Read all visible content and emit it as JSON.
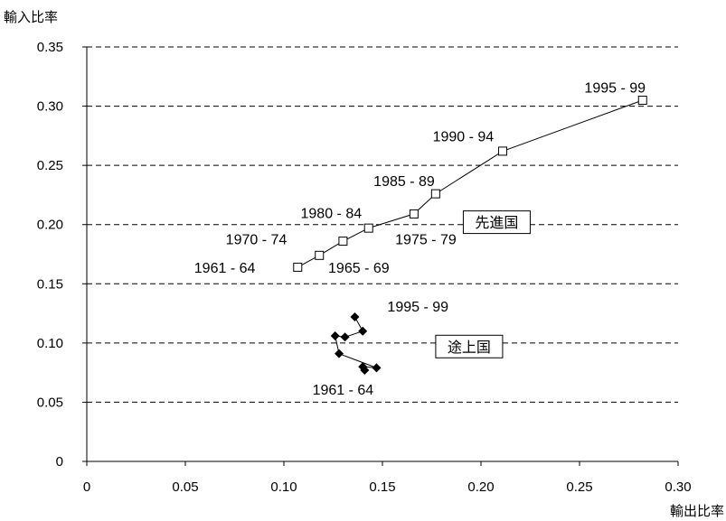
{
  "chart_data": {
    "type": "scatter",
    "title": "",
    "xlabel": "輸出比率",
    "ylabel": "輸入比率",
    "xlim": [
      0,
      0.3
    ],
    "ylim": [
      0,
      0.35
    ],
    "x_ticks": [
      "0",
      "0.05",
      "0.10",
      "0.15",
      "0.20",
      "0.25",
      "0.30"
    ],
    "y_ticks": [
      "0",
      "0.05",
      "0.10",
      "0.15",
      "0.20",
      "0.25",
      "0.30",
      "0.35"
    ],
    "grid": "horizontal dashed",
    "series": [
      {
        "name": "先進国",
        "marker": "open-square",
        "points": [
          {
            "x": 0.107,
            "y": 0.164
          },
          {
            "x": 0.118,
            "y": 0.174
          },
          {
            "x": 0.13,
            "y": 0.186
          },
          {
            "x": 0.143,
            "y": 0.197
          },
          {
            "x": 0.166,
            "y": 0.209
          },
          {
            "x": 0.177,
            "y": 0.226
          },
          {
            "x": 0.211,
            "y": 0.262
          },
          {
            "x": 0.282,
            "y": 0.305
          }
        ]
      },
      {
        "name": "途上国",
        "marker": "filled-diamond",
        "points": [
          {
            "x": 0.141,
            "y": 0.077
          },
          {
            "x": 0.14,
            "y": 0.08
          },
          {
            "x": 0.147,
            "y": 0.079
          },
          {
            "x": 0.128,
            "y": 0.091
          },
          {
            "x": 0.126,
            "y": 0.106
          },
          {
            "x": 0.131,
            "y": 0.105
          },
          {
            "x": 0.14,
            "y": 0.11
          },
          {
            "x": 0.136,
            "y": 0.122
          }
        ]
      }
    ],
    "annotations": [
      {
        "text": "1995 - 99",
        "x": 0.268,
        "y": 0.316
      },
      {
        "text": "1990 - 94",
        "x": 0.191,
        "y": 0.275
      },
      {
        "text": "1985 - 89",
        "x": 0.161,
        "y": 0.237
      },
      {
        "text": "1980 - 84",
        "x": 0.124,
        "y": 0.21
      },
      {
        "text": "1975 - 79",
        "x": 0.172,
        "y": 0.188
      },
      {
        "text": "1970 - 74",
        "x": 0.086,
        "y": 0.188
      },
      {
        "text": "1965 - 69",
        "x": 0.138,
        "y": 0.164
      },
      {
        "text": "1961 - 64",
        "x": 0.07,
        "y": 0.164
      },
      {
        "text": "1995 - 99",
        "x": 0.168,
        "y": 0.131
      },
      {
        "text": "1961 - 64",
        "x": 0.13,
        "y": 0.061
      }
    ],
    "box_labels": [
      {
        "text": "先進国",
        "x": 0.208,
        "y": 0.202
      },
      {
        "text": "途上国",
        "x": 0.194,
        "y": 0.097
      }
    ]
  }
}
